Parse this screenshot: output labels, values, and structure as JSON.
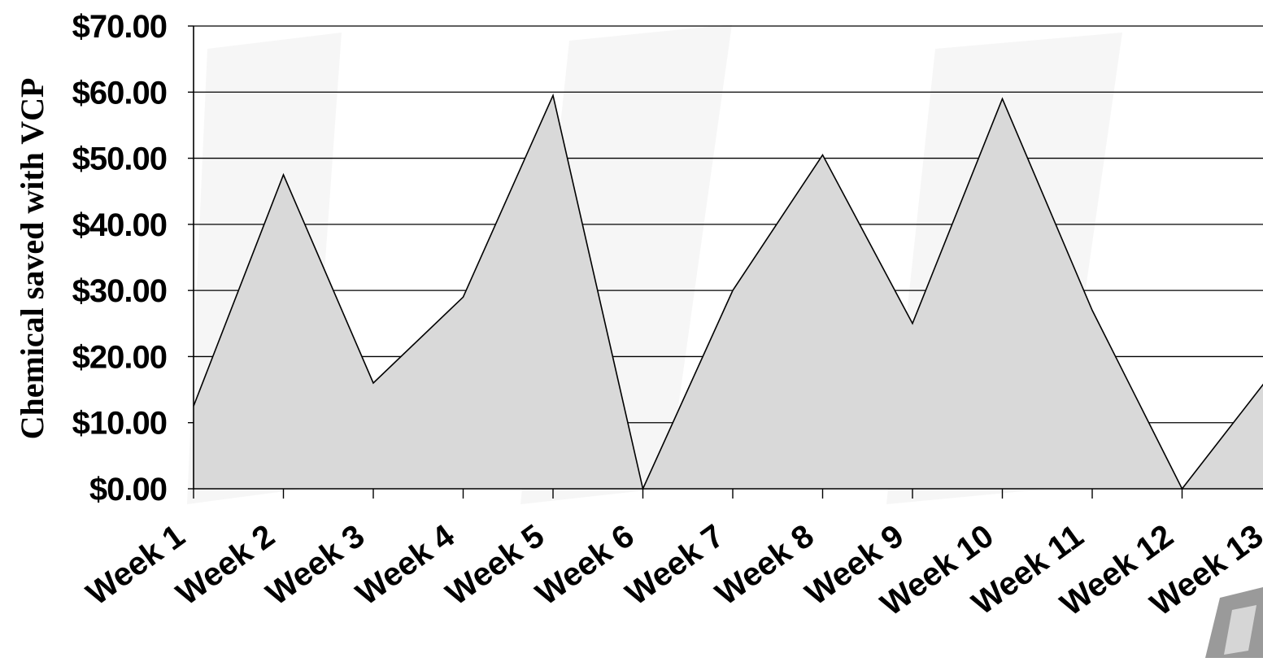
{
  "chart_data": {
    "type": "area",
    "title": "",
    "xlabel": "",
    "ylabel": "Chemical saved with VCP",
    "categories": [
      "Week 1",
      "Week 2",
      "Week 3",
      "Week 4",
      "Week 5",
      "Week 6",
      "Week 7",
      "Week 8",
      "Week 9",
      "Week 10",
      "Week 11",
      "Week 12",
      "Week 13"
    ],
    "values": [
      12.5,
      47.5,
      16,
      29,
      59.5,
      0,
      30,
      50.5,
      25,
      59,
      27,
      0,
      17.5
    ],
    "ylim": [
      0,
      70
    ],
    "y_ticks": [
      0,
      10,
      20,
      30,
      40,
      50,
      60,
      70
    ],
    "y_tick_labels": [
      "$0.00",
      "$10.00",
      "$20.00",
      "$30.00",
      "$40.00",
      "$50.00",
      "$60.00",
      "$70.00"
    ],
    "grid": true,
    "legend": "none"
  },
  "colors": {
    "fill": "#d9d9d9",
    "line": "#000000",
    "grid": "#000000",
    "watermark": "#eeeeee",
    "logo": "#9a9a9a"
  }
}
